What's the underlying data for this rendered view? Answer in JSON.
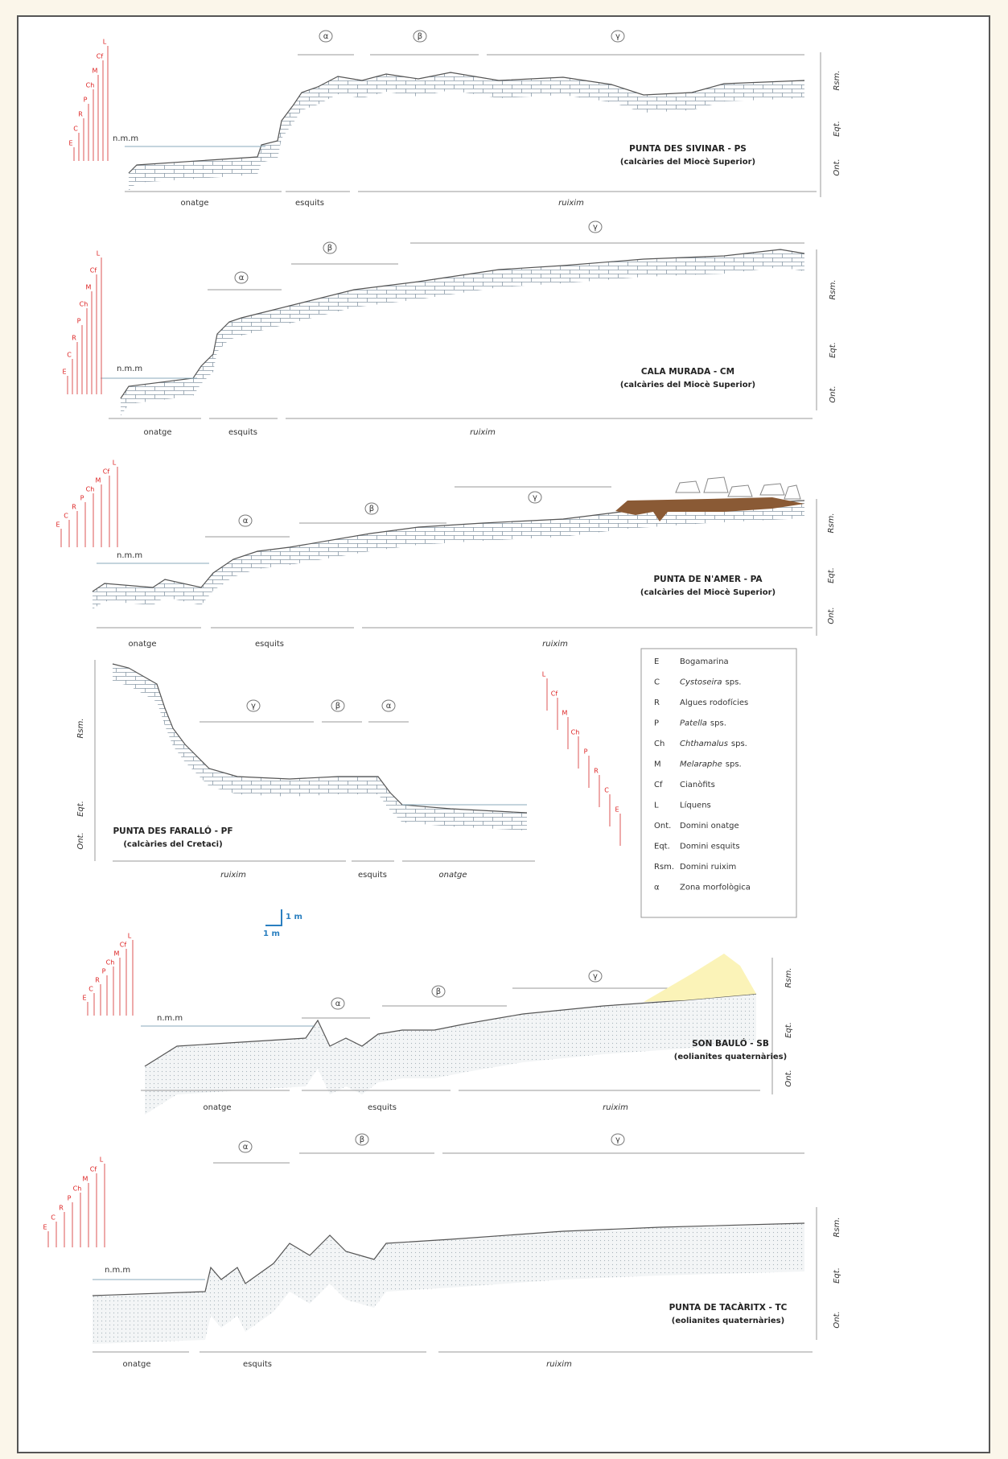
{
  "profiles": [
    {
      "zones": [
        "α",
        "β",
        "γ"
      ],
      "domains": [
        "Rsm.",
        "Eqt.",
        "Ont."
      ],
      "title": "PUNTA DES SIVINAR - PS",
      "subtitle": "(calcàries del Miocè Superior)",
      "sea_level": "n.m.m",
      "bottom_labels": [
        "onatge",
        "esquits",
        "ruixim"
      ],
      "species": [
        "E",
        "C",
        "R",
        "P",
        "Ch",
        "M",
        "Cf",
        "L"
      ]
    },
    {
      "zones": [
        "α",
        "β",
        "γ"
      ],
      "domains": [
        "Rsm.",
        "Eqt.",
        "Ont."
      ],
      "title": "CALA MURADA - CM",
      "subtitle": "(calcàries del Miocè Superior)",
      "sea_level": "n.m.m",
      "bottom_labels": [
        "onatge",
        "esquits",
        "ruixim"
      ],
      "species": [
        "E",
        "C",
        "R",
        "P",
        "Ch",
        "M",
        "Cf",
        "L"
      ]
    },
    {
      "zones": [
        "α",
        "β",
        "γ"
      ],
      "domains": [
        "Rsm.",
        "Eqt.",
        "Ont."
      ],
      "title": "PUNTA DE N'AMER - PA",
      "subtitle": "(calcàries del Miocè Superior)",
      "sea_level": "n.m.m",
      "bottom_labels": [
        "onatge",
        "esquits",
        "ruixim"
      ],
      "species": [
        "E",
        "C",
        "R",
        "P",
        "Ch",
        "M",
        "Cf",
        "L"
      ]
    },
    {
      "zones": [
        "γ",
        "β",
        "α"
      ],
      "domains": [
        "Rsm.",
        "Eqt.",
        "Ont."
      ],
      "title": "PUNTA DES FARALLÓ - PF",
      "subtitle": "(calcàries del Cretaci)",
      "bottom_labels": [
        "ruixim",
        "esquits",
        "onatge"
      ],
      "species": [
        "L",
        "Cf",
        "M",
        "Ch",
        "P",
        "R",
        "C",
        "E"
      ]
    },
    {
      "zones": [
        "α",
        "β",
        "γ"
      ],
      "domains": [
        "Rsm.",
        "Eqt.",
        "Ont."
      ],
      "title": "SON BAULÓ - SB",
      "subtitle": "(eolianites quaternàries)",
      "sea_level": "n.m.m",
      "bottom_labels": [
        "onatge",
        "esquits",
        "ruixim"
      ],
      "species": [
        "E",
        "C",
        "R",
        "P",
        "Ch",
        "M",
        "Cf",
        "L"
      ]
    },
    {
      "zones": [
        "α",
        "β",
        "γ"
      ],
      "domains": [
        "Rsm.",
        "Eqt.",
        "Ont."
      ],
      "title": "PUNTA DE TACÀRITX - TC",
      "subtitle": "(eolianites quaternàries)",
      "sea_level": "n.m.m",
      "bottom_labels": [
        "onatge",
        "esquits",
        "ruixim"
      ],
      "species": [
        "E",
        "C",
        "R",
        "P",
        "Ch",
        "M",
        "Cf",
        "L"
      ]
    }
  ],
  "legend": {
    "items": [
      {
        "code": "E",
        "label": "Bogamarina"
      },
      {
        "code": "C",
        "taxon": "Cystoseira",
        "label": "sps."
      },
      {
        "code": "R",
        "label": "Algues rodofícies"
      },
      {
        "code": "P",
        "taxon": "Patella",
        "label": "sps."
      },
      {
        "code": "Ch",
        "taxon": "Chthamalus",
        "label": "sps."
      },
      {
        "code": "M",
        "taxon": "Melaraphe",
        "label": "sps."
      },
      {
        "code": "Cf",
        "label": "Cianòfits"
      },
      {
        "code": "L",
        "label": "Líquens"
      },
      {
        "code": "Ont.",
        "label": "Domini onatge"
      },
      {
        "code": "Eqt.",
        "label": "Domini esquits"
      },
      {
        "code": "Rsm.",
        "label": "Domini ruixim"
      },
      {
        "code": "α",
        "label": "Zona morfològica"
      }
    ]
  },
  "scale": {
    "vertical": "1 m",
    "horizontal": "1 m"
  }
}
